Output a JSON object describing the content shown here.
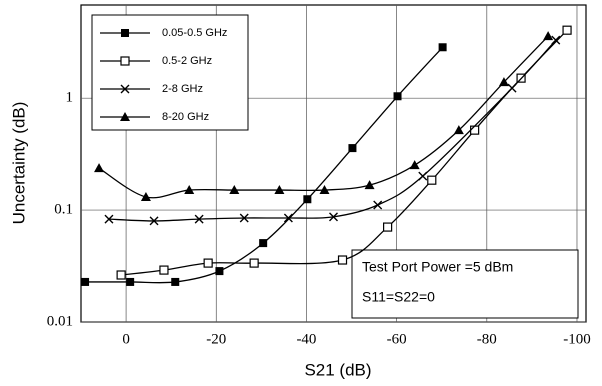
{
  "chart_data": {
    "type": "line",
    "xlabel": "S21 (dB)",
    "ylabel": "Uncertainty (dB)",
    "xlim": [
      10,
      -102
    ],
    "xticks": [
      0,
      -20,
      -40,
      -60,
      -80,
      -100
    ],
    "ylim": [
      0.01,
      6.8
    ],
    "yticks": [
      0.01,
      0.1,
      1
    ],
    "yscale": "log",
    "grid": true,
    "legend": "upper left",
    "annotations": [
      "Test Port Power =5 dBm",
      "S11=S22=0"
    ],
    "series": [
      {
        "name": "0.05-0.5 GHz",
        "color": "#000000",
        "marker": "square-filled",
        "x": [
          9.1,
          -0.9,
          -10.9,
          -20.7,
          -30.4,
          -40.2,
          -50.2,
          -60.2,
          -70.2
        ],
        "values": [
          0.0228,
          0.0228,
          0.0228,
          0.0285,
          0.0507,
          0.125,
          0.358,
          1.04,
          2.85
        ]
      },
      {
        "name": "0.5-2 GHz",
        "color": "#000000",
        "marker": "square-open",
        "x": [
          1.1,
          -8.4,
          -18.2,
          -28.4,
          -48,
          -58,
          -67.8,
          -77.3,
          -87.6,
          -97.8
        ],
        "values": [
          0.0263,
          0.0291,
          0.0336,
          0.0336,
          0.0358,
          0.0705,
          0.185,
          0.518,
          1.51,
          4.05
        ]
      },
      {
        "name": "2-8 GHz",
        "color": "#000000",
        "marker": "x",
        "x": [
          3.8,
          -6.2,
          -16.2,
          -26.2,
          -36,
          -46,
          -55.8,
          -65.8,
          -85.6,
          -95.3
        ],
        "values": [
          0.083,
          0.08,
          0.083,
          0.085,
          0.085,
          0.087,
          0.111,
          0.201,
          1.23,
          3.3
        ]
      },
      {
        "name": "8-20 GHz",
        "color": "#000000",
        "marker": "triangle",
        "x": [
          6,
          -4.4,
          -14,
          -24,
          -34,
          -44,
          -54,
          -64,
          -73.8,
          -83.8,
          -93.6
        ],
        "values": [
          0.237,
          0.131,
          0.151,
          0.151,
          0.151,
          0.151,
          0.167,
          0.252,
          0.518,
          1.39,
          3.58
        ]
      }
    ]
  }
}
